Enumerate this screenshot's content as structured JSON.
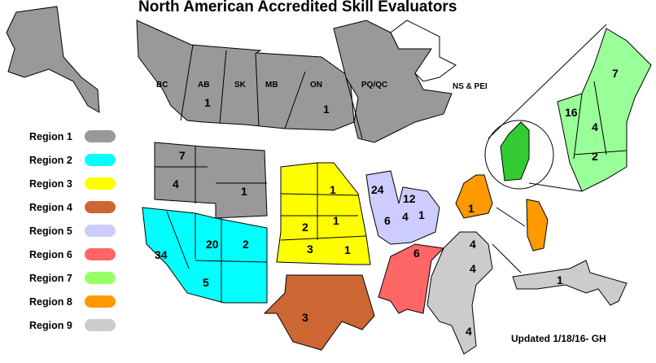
{
  "title": "North American Accredited Skill Evaluators",
  "updated": "Updated 1/18/16- GH",
  "legend": [
    {
      "label": "Region 1",
      "color": "#999999"
    },
    {
      "label": "Region 2",
      "color": "#00ffff"
    },
    {
      "label": "Region 3",
      "color": "#ffff00"
    },
    {
      "label": "Region 4",
      "color": "#cc6633"
    },
    {
      "label": "Region 5",
      "color": "#ccccff"
    },
    {
      "label": "Region 6",
      "color": "#ff6666"
    },
    {
      "label": "Region 7",
      "color": "#99ff66"
    },
    {
      "label": "Region 8",
      "color": "#ff9900"
    },
    {
      "label": "Region 9",
      "color": "#cccccc"
    }
  ],
  "provinces": [
    "BC",
    "AB",
    "SK",
    "MB",
    "ON",
    "PQ/QC",
    "NS & PEI"
  ],
  "counts": {
    "ab": "1",
    "on": "1",
    "r1_wa": "7",
    "r1_or": "4",
    "r1_wy": "1",
    "r2_ca": "34",
    "r2_nv_ut": "20",
    "r2_co": "2",
    "r2_az": "5",
    "r3_mn": "1",
    "r3_ne": "2",
    "r3_ia": "1",
    "r3_ks": "3",
    "r3_mo": "1",
    "r4_tx": "3",
    "r5_wi": "24",
    "r5_mi": "12",
    "r5_il": "6",
    "r5_in": "4",
    "r5_oh": "1",
    "r6_tn": "6",
    "r7_me": "7",
    "r7_vt": "16",
    "r7_nh": "4",
    "r7_ma": "2",
    "r8_ny": "1",
    "r9_va": "4",
    "r9_nc": "4",
    "r9_fl": "4",
    "r9_md": "1"
  }
}
